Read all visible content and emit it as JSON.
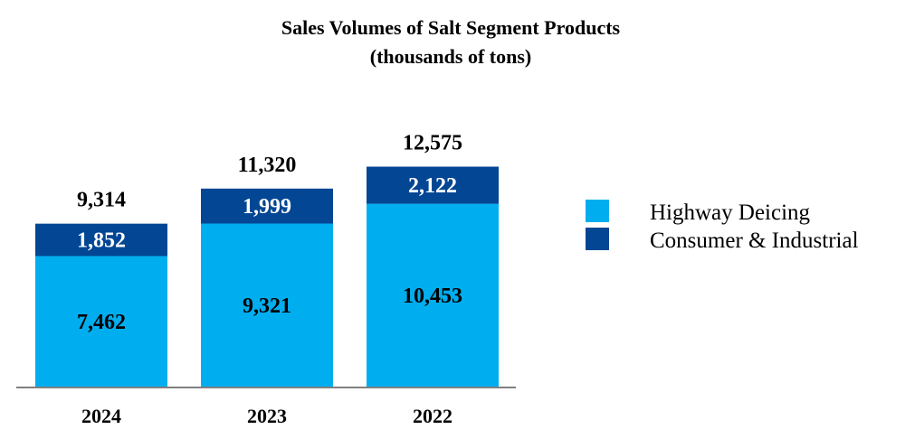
{
  "chart_data": {
    "type": "bar",
    "stacked": true,
    "title": "Sales Volumes of Salt Segment Products",
    "subtitle": "(thousands of tons)",
    "categories": [
      "2024",
      "2023",
      "2022"
    ],
    "series": [
      {
        "name": "Highway Deicing",
        "values": [
          7462,
          9321,
          10453
        ],
        "labels": [
          "7,462",
          "9,321",
          "10,453"
        ],
        "color": "#00aeef"
      },
      {
        "name": "Consumer & Industrial",
        "values": [
          1852,
          1999,
          2122
        ],
        "labels": [
          "1,852",
          "1,999",
          "2,122"
        ],
        "color": "#034694"
      }
    ],
    "totals": [
      9314,
      11320,
      12575
    ],
    "total_labels": [
      "9,314",
      "11,320",
      "12,575"
    ],
    "ylim": [
      0,
      14000
    ],
    "xlabel": "",
    "ylabel": "",
    "grid": false,
    "legend_position": "right"
  }
}
